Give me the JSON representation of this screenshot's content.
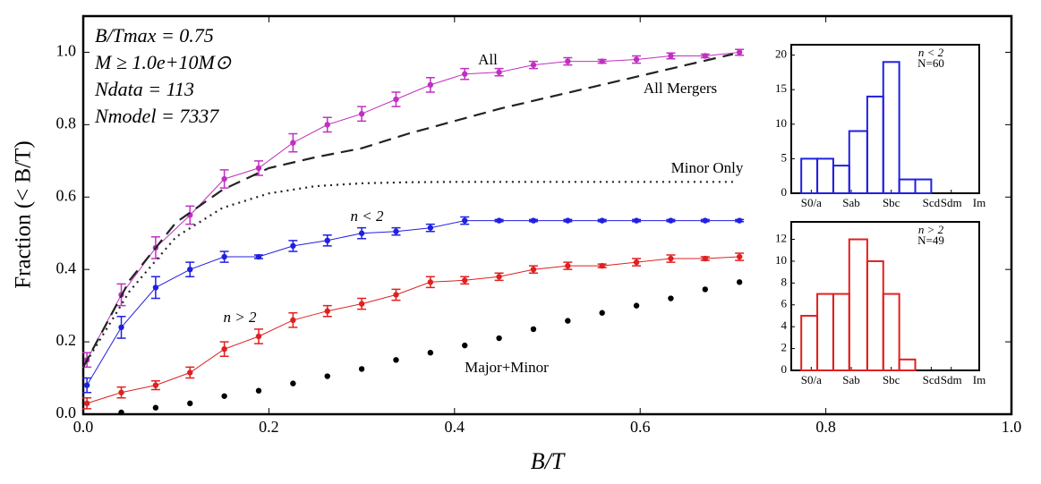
{
  "chart_data": [
    {
      "type": "line",
      "xlabel": "B/T",
      "ylabel": "Fraction (< B/T)",
      "xlim": [
        0,
        1
      ],
      "ylim": [
        0,
        1.1
      ],
      "xticks": [
        {
          "value": 0,
          "label": "0.0"
        },
        0.2,
        0.4,
        0.6,
        0.8,
        {
          "value": 1,
          "label": "1.0"
        }
      ],
      "yticks": [
        {
          "value": 0,
          "label": "0.0"
        },
        0.2,
        0.4,
        0.6,
        0.8,
        {
          "value": 1,
          "label": "1.0"
        }
      ],
      "annotations": [
        "B/Tmax = 0.75",
        "M ≥ 1.0e+10M⊙",
        "Ndata = 113",
        "Nmodel = 7337"
      ],
      "x": [
        0.004,
        0.041,
        0.078,
        0.115,
        0.152,
        0.189,
        0.226,
        0.263,
        0.3,
        0.337,
        0.374,
        0.411,
        0.448,
        0.485,
        0.522,
        0.559,
        0.596,
        0.633,
        0.67,
        0.707
      ],
      "series": [
        {
          "name": "All",
          "color": "#c030c0",
          "style": "errorbar",
          "values": [
            0.15,
            0.33,
            0.46,
            0.55,
            0.65,
            0.68,
            0.75,
            0.8,
            0.83,
            0.87,
            0.91,
            0.94,
            0.945,
            0.965,
            0.975,
            0.975,
            0.98,
            0.99,
            0.99,
            1.0
          ],
          "errors": [
            0.02,
            0.03,
            0.03,
            0.025,
            0.025,
            0.02,
            0.025,
            0.02,
            0.02,
            0.02,
            0.02,
            0.015,
            0.01,
            0.01,
            0.01,
            0.005,
            0.01,
            0.008,
            0.005,
            0.008
          ]
        },
        {
          "name": "All Mergers",
          "color": "#222222",
          "style": "dashed",
          "x": [
            0,
            0.05,
            0.1,
            0.15,
            0.2,
            0.25,
            0.3,
            0.35,
            0.4,
            0.45,
            0.5,
            0.55,
            0.6,
            0.65,
            0.7
          ],
          "values": [
            0.13,
            0.37,
            0.53,
            0.62,
            0.68,
            0.71,
            0.735,
            0.775,
            0.81,
            0.845,
            0.875,
            0.905,
            0.935,
            0.965,
            0.995
          ]
        },
        {
          "name": "Minor Only",
          "color": "#222222",
          "style": "dotted",
          "x": [
            0,
            0.05,
            0.1,
            0.15,
            0.2,
            0.25,
            0.3,
            0.35,
            0.4,
            0.5,
            0.6,
            0.7
          ],
          "values": [
            0.13,
            0.34,
            0.49,
            0.57,
            0.61,
            0.63,
            0.638,
            0.641,
            0.642,
            0.642,
            0.642,
            0.642
          ]
        },
        {
          "name": "n < 2",
          "color": "#2020e0",
          "style": "errorbar",
          "values": [
            0.08,
            0.24,
            0.35,
            0.4,
            0.435,
            0.435,
            0.465,
            0.48,
            0.5,
            0.505,
            0.515,
            0.535,
            0.535,
            0.535,
            0.535,
            0.535,
            0.535,
            0.535,
            0.535,
            0.535
          ],
          "errors": [
            0.02,
            0.03,
            0.03,
            0.02,
            0.015,
            0.005,
            0.015,
            0.015,
            0.015,
            0.01,
            0.01,
            0.01,
            0.003,
            0.003,
            0.003,
            0.003,
            0.003,
            0.003,
            0.003,
            0.003
          ]
        },
        {
          "name": "n > 2",
          "color": "#e02020",
          "style": "errorbar",
          "values": [
            0.03,
            0.06,
            0.08,
            0.115,
            0.18,
            0.215,
            0.26,
            0.285,
            0.305,
            0.33,
            0.365,
            0.37,
            0.38,
            0.4,
            0.41,
            0.41,
            0.42,
            0.43,
            0.43,
            0.435
          ],
          "errors": [
            0.015,
            0.015,
            0.012,
            0.015,
            0.02,
            0.02,
            0.02,
            0.015,
            0.015,
            0.015,
            0.015,
            0.01,
            0.01,
            0.01,
            0.01,
            0.005,
            0.01,
            0.01,
            0.005,
            0.01
          ]
        },
        {
          "name": "Major+Minor",
          "color": "#000000",
          "style": "dots",
          "values": [
            null,
            0.005,
            0.018,
            0.03,
            0.05,
            0.065,
            0.085,
            0.105,
            0.125,
            0.15,
            0.17,
            0.19,
            0.21,
            0.235,
            0.258,
            0.28,
            0.3,
            0.32,
            0.345,
            0.365
          ]
        }
      ]
    },
    {
      "type": "histogram",
      "color": "#2020e0",
      "annotations": [
        "n < 2",
        "N=60"
      ],
      "xlim": [
        0,
        9.4
      ],
      "ylim": [
        0,
        21.5
      ],
      "yticks": [
        0,
        5,
        10,
        15,
        20
      ],
      "xticks": [
        {
          "value": 1,
          "label": "S0/a"
        },
        {
          "value": 3,
          "label": "Sab"
        },
        {
          "value": 5,
          "label": "Sbc"
        },
        {
          "value": 7,
          "label": "Scd"
        },
        {
          "value": 8,
          "label": "Sdm"
        },
        {
          "value": 9.4,
          "label": "Im"
        }
      ],
      "bins": [
        0.5,
        1.3,
        2.1,
        2.9,
        3.8,
        4.6,
        5.4,
        6.2,
        7.0
      ],
      "values": [
        5,
        5,
        4,
        9,
        14,
        19,
        2,
        2
      ]
    },
    {
      "type": "histogram",
      "color": "#e02020",
      "annotations": [
        "n > 2",
        "N=49"
      ],
      "xlim": [
        0,
        9.4
      ],
      "ylim": [
        0,
        13.6
      ],
      "yticks": [
        0,
        2,
        4,
        6,
        8,
        10,
        12
      ],
      "xticks": [
        {
          "value": 1,
          "label": "S0/a"
        },
        {
          "value": 3,
          "label": "Sab"
        },
        {
          "value": 5,
          "label": "Sbc"
        },
        {
          "value": 7,
          "label": "Scd"
        },
        {
          "value": 8,
          "label": "Sdm"
        },
        {
          "value": 9.4,
          "label": "Im"
        }
      ],
      "bins": [
        0.5,
        1.3,
        2.1,
        2.9,
        3.8,
        4.6,
        5.4,
        6.2
      ],
      "values": [
        5,
        7,
        7,
        12,
        10,
        7,
        1
      ]
    }
  ]
}
